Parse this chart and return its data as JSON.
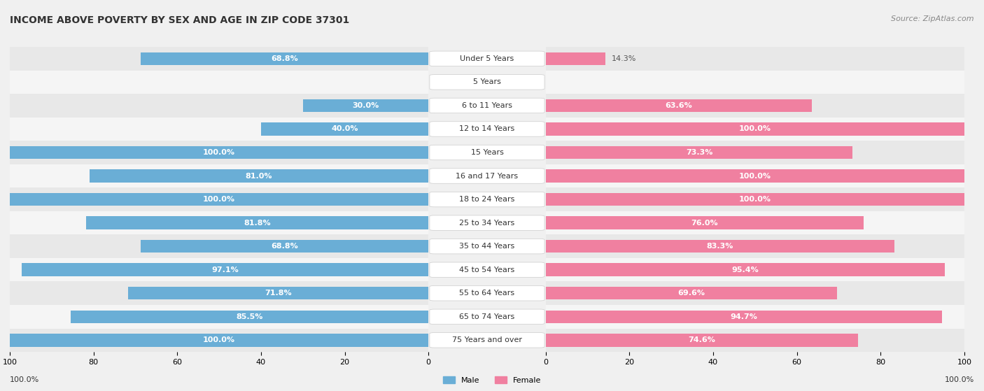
{
  "title": "INCOME ABOVE POVERTY BY SEX AND AGE IN ZIP CODE 37301",
  "source": "Source: ZipAtlas.com",
  "categories": [
    "Under 5 Years",
    "5 Years",
    "6 to 11 Years",
    "12 to 14 Years",
    "15 Years",
    "16 and 17 Years",
    "18 to 24 Years",
    "25 to 34 Years",
    "35 to 44 Years",
    "45 to 54 Years",
    "55 to 64 Years",
    "65 to 74 Years",
    "75 Years and over"
  ],
  "male_values": [
    68.8,
    0.0,
    30.0,
    40.0,
    100.0,
    81.0,
    100.0,
    81.8,
    68.8,
    97.1,
    71.8,
    85.5,
    100.0
  ],
  "female_values": [
    14.3,
    0.0,
    63.6,
    100.0,
    73.3,
    100.0,
    100.0,
    76.0,
    83.3,
    95.4,
    69.6,
    94.7,
    74.6
  ],
  "male_color": "#6aaed6",
  "female_color": "#f080a0",
  "male_label": "Male",
  "female_label": "Female",
  "bg_color": "#f0f0f0",
  "row_color_odd": "#e8e8e8",
  "row_color_even": "#f5f5f5",
  "title_fontsize": 10,
  "source_fontsize": 8,
  "label_fontsize": 8,
  "cat_fontsize": 8,
  "tick_fontsize": 8,
  "xlim": 100,
  "bar_height": 0.55,
  "bottom_left_label": "100.0%",
  "bottom_right_label": "100.0%"
}
